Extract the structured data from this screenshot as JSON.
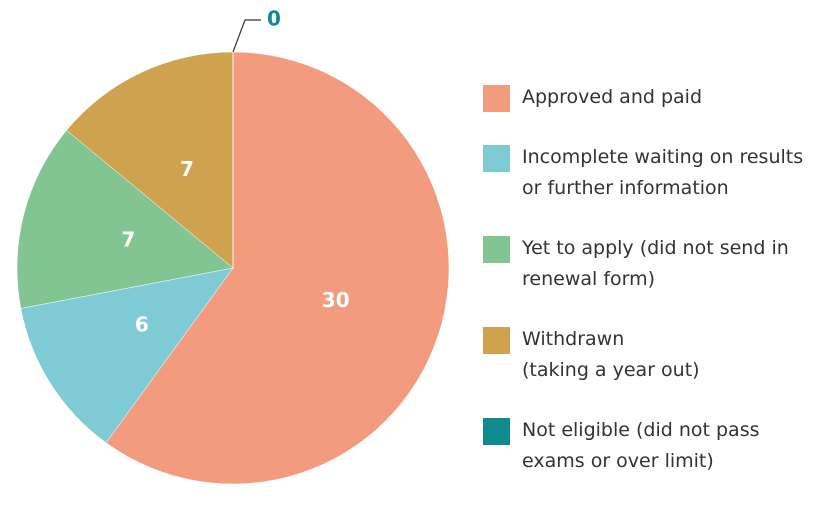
{
  "chart_data": {
    "type": "pie",
    "categories": [
      "Approved and paid",
      "Incomplete waiting on results\nor further information",
      "Yet to apply (did not send in\nrenewal form)",
      "Withdrawn\n(taking a year out)",
      "Not eligible (did not pass\nexams or over limit)"
    ],
    "values": [
      30,
      6,
      7,
      7,
      0
    ],
    "colors": [
      "#f29b7f",
      "#7ecbd6",
      "#83c493",
      "#cfa24f",
      "#0f8a8f"
    ],
    "legend": "right"
  }
}
